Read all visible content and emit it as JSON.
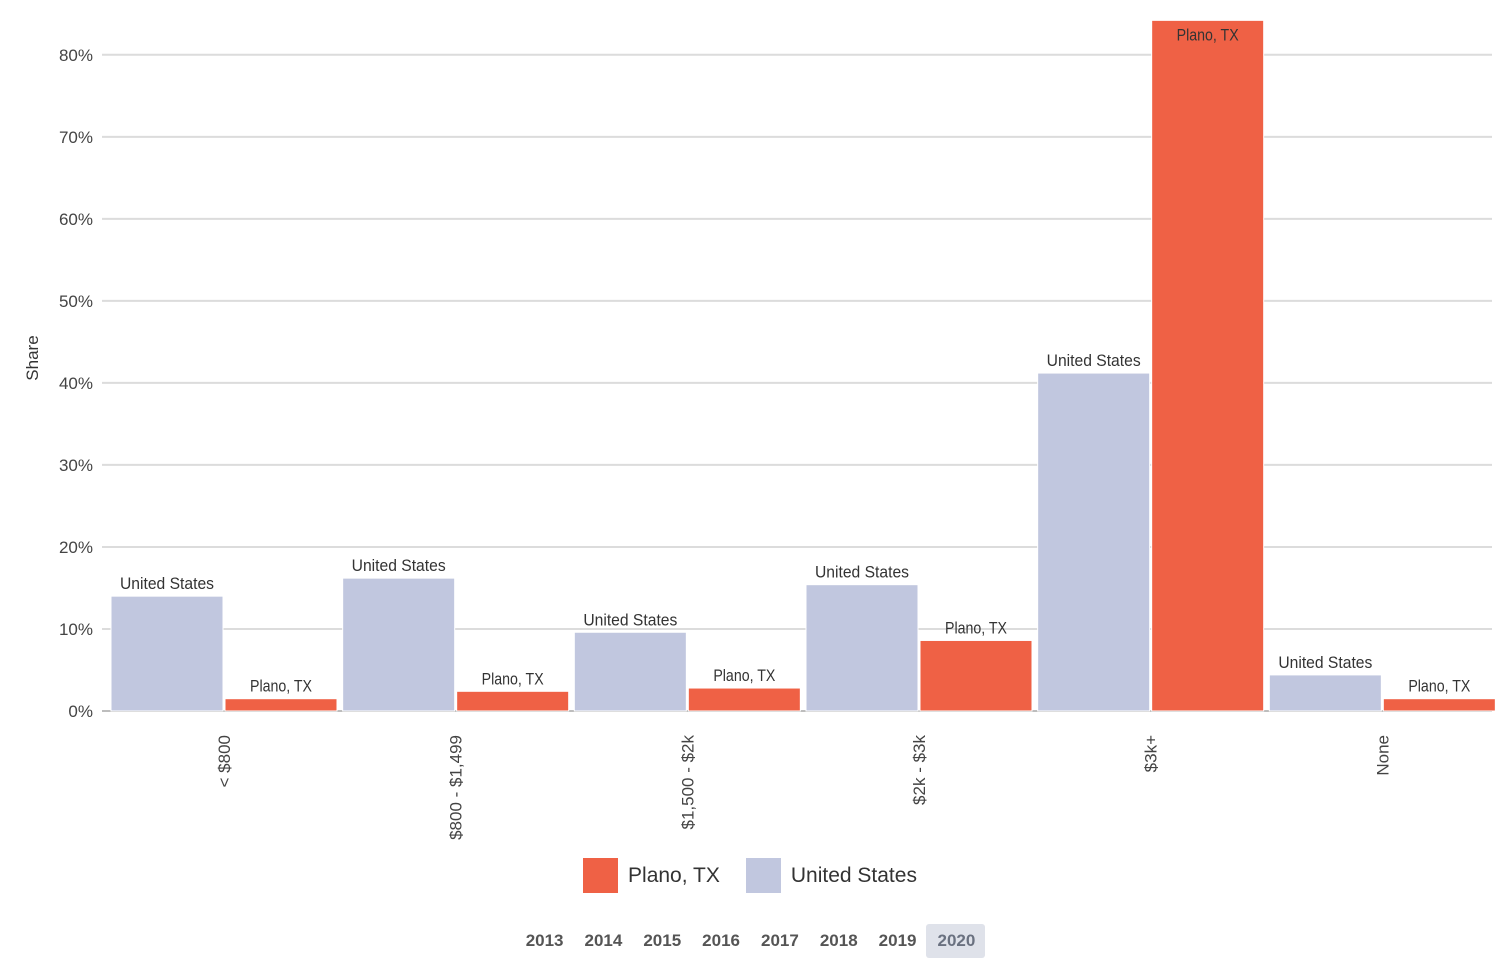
{
  "chart_data": {
    "type": "bar",
    "categories": [
      "< $800",
      "$800 - $1,499",
      "$1,500 - $2k",
      "$2k - $3k",
      "$3k+",
      "None"
    ],
    "series": [
      {
        "name": "United States",
        "color": "#c1c7df",
        "values": [
          14.0,
          16.2,
          9.6,
          15.4,
          41.2,
          4.4
        ]
      },
      {
        "name": "Plano, TX",
        "color": "#ef6145",
        "values": [
          1.5,
          2.4,
          2.8,
          8.6,
          84.2,
          1.5
        ]
      }
    ],
    "title": "",
    "xlabel": "",
    "ylabel": "Share",
    "ylim": [
      0,
      84
    ],
    "yticks": [
      0,
      10,
      20,
      30,
      40,
      50,
      60,
      70,
      80
    ],
    "ytick_labels": [
      "0%",
      "10%",
      "20%",
      "30%",
      "40%",
      "50%",
      "60%",
      "70%",
      "80%"
    ]
  },
  "legend": {
    "items": [
      {
        "label": "Plano, TX",
        "color": "#ef6145"
      },
      {
        "label": "United States",
        "color": "#c1c7df"
      }
    ]
  },
  "years": {
    "items": [
      "2013",
      "2014",
      "2015",
      "2016",
      "2017",
      "2018",
      "2019",
      "2020"
    ],
    "selected": "2020"
  }
}
